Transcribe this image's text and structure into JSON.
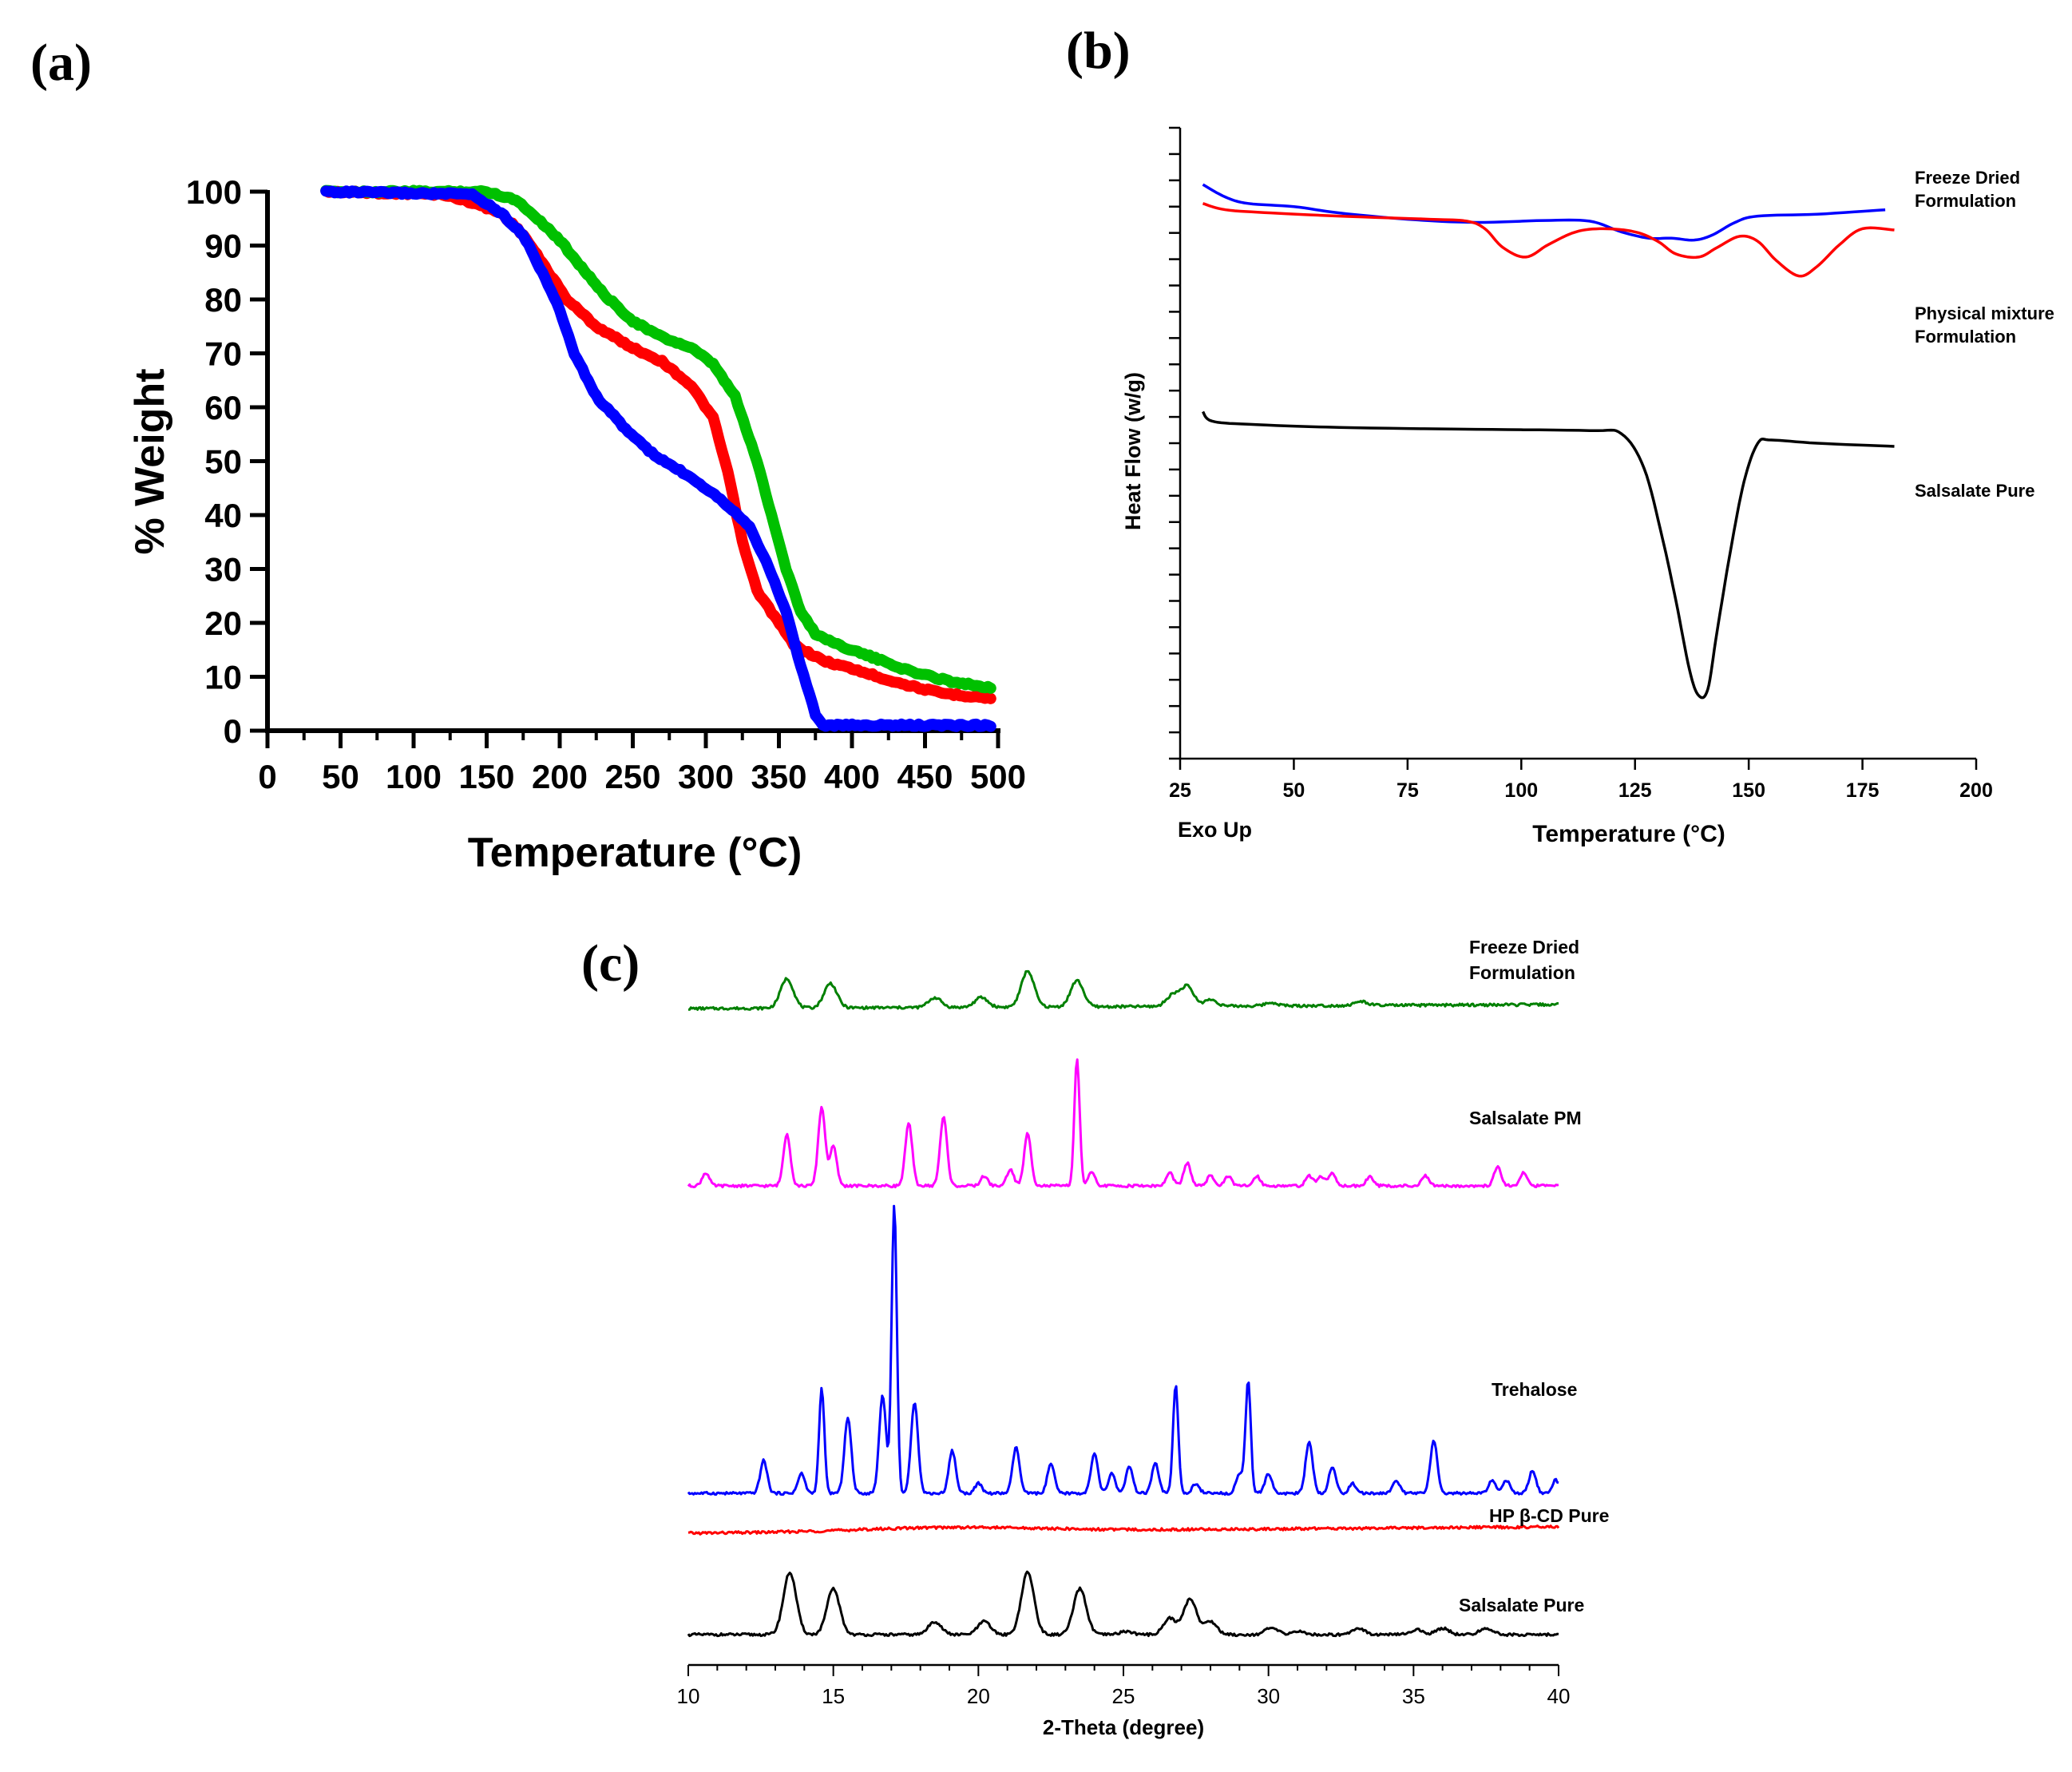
{
  "panel_labels": {
    "a": "(a)",
    "b": "(b)",
    "c": "(c)"
  },
  "chart_data": [
    {
      "panel": "(a)",
      "type": "line",
      "xlabel": "Temperature (°C)",
      "ylabel": "% Weight",
      "xlim": [
        0,
        500
      ],
      "ylim": [
        0,
        100
      ],
      "xticks": [
        "0",
        "50",
        "100",
        "150",
        "200",
        "250",
        "300",
        "350",
        "400",
        "450",
        "500"
      ],
      "yticks": [
        "0",
        "10",
        "20",
        "30",
        "40",
        "50",
        "60",
        "70",
        "80",
        "90",
        "100"
      ],
      "grid": false,
      "series": [
        {
          "color": "#ff0000",
          "points": [
            [
              40,
              100
            ],
            [
              120,
              99.5
            ],
            [
              140,
              98
            ],
            [
              160,
              96
            ],
            [
              175,
              92
            ],
            [
              190,
              86
            ],
            [
              205,
              80
            ],
            [
              225,
              75
            ],
            [
              250,
              71
            ],
            [
              270,
              68.5
            ],
            [
              290,
              64
            ],
            [
              305,
              58
            ],
            [
              315,
              48
            ],
            [
              325,
              35
            ],
            [
              335,
              26
            ],
            [
              345,
              22
            ],
            [
              360,
              16
            ],
            [
              380,
              13
            ],
            [
              400,
              11.5
            ],
            [
              430,
              9
            ],
            [
              460,
              7
            ],
            [
              495,
              6
            ]
          ]
        },
        {
          "color": "#00c000",
          "points": [
            [
              40,
              100
            ],
            [
              150,
              100
            ],
            [
              170,
              98.5
            ],
            [
              185,
              95
            ],
            [
              200,
              91
            ],
            [
              215,
              86
            ],
            [
              230,
              81
            ],
            [
              250,
              76
            ],
            [
              270,
              73
            ],
            [
              290,
              71
            ],
            [
              305,
              68
            ],
            [
              320,
              62
            ],
            [
              335,
              50
            ],
            [
              345,
              40
            ],
            [
              355,
              30
            ],
            [
              365,
              22
            ],
            [
              375,
              18
            ],
            [
              390,
              16
            ],
            [
              410,
              14
            ],
            [
              440,
              11
            ],
            [
              470,
              9
            ],
            [
              495,
              8
            ]
          ]
        },
        {
          "color": "#0000ff",
          "points": [
            [
              40,
              100
            ],
            [
              140,
              99.5
            ],
            [
              160,
              96
            ],
            [
              175,
              92
            ],
            [
              190,
              84
            ],
            [
              200,
              78
            ],
            [
              210,
              70
            ],
            [
              225,
              62
            ],
            [
              245,
              56
            ],
            [
              265,
              51
            ],
            [
              290,
              47
            ],
            [
              310,
              43
            ],
            [
              330,
              38
            ],
            [
              345,
              29
            ],
            [
              355,
              22
            ],
            [
              365,
              12
            ],
            [
              375,
              3
            ],
            [
              380,
              1
            ],
            [
              420,
              1
            ],
            [
              495,
              1
            ]
          ]
        }
      ]
    },
    {
      "panel": "(b)",
      "type": "line",
      "xlabel": "Temperature (°C)",
      "ylabel": "Heat Flow (w/g)",
      "corner_note": "Exo Up",
      "xlim": [
        25,
        200
      ],
      "xticks": [
        "25",
        "50",
        "75",
        "100",
        "125",
        "150",
        "175",
        "200"
      ],
      "grid": false,
      "series": [
        {
          "name": "Freeze Dried Formulation",
          "label_lines": [
            "Freeze Dried",
            "Formulation"
          ],
          "color": "#0000ff",
          "points": [
            [
              30,
              91
            ],
            [
              35,
              89
            ],
            [
              40,
              88
            ],
            [
              50,
              87.5
            ],
            [
              60,
              86.5
            ],
            [
              75,
              85.5
            ],
            [
              90,
              85
            ],
            [
              105,
              85.3
            ],
            [
              115,
              85.2
            ],
            [
              122,
              83.5
            ],
            [
              128,
              82.5
            ],
            [
              133,
              82.5
            ],
            [
              138,
              82.2
            ],
            [
              142,
              83
            ],
            [
              147,
              85
            ],
            [
              152,
              86
            ],
            [
              165,
              86.3
            ],
            [
              180,
              87
            ]
          ]
        },
        {
          "name": "Physical mixture Formulation",
          "label_lines": [
            "Physical mixture",
            "Formulation"
          ],
          "color": "#ff0000",
          "points": [
            [
              30,
              88
            ],
            [
              35,
              87
            ],
            [
              45,
              86.5
            ],
            [
              60,
              86
            ],
            [
              80,
              85.5
            ],
            [
              88,
              85.2
            ],
            [
              92,
              84
            ],
            [
              96,
              81
            ],
            [
              101,
              79.5
            ],
            [
              106,
              81.5
            ],
            [
              112,
              83.5
            ],
            [
              118,
              84
            ],
            [
              125,
              83.5
            ],
            [
              130,
              82
            ],
            [
              134,
              80
            ],
            [
              139,
              79.5
            ],
            [
              143,
              81
            ],
            [
              148,
              82.8
            ],
            [
              152,
              82
            ],
            [
              156,
              79
            ],
            [
              161,
              76.5
            ],
            [
              165,
              78
            ],
            [
              170,
              81.5
            ],
            [
              175,
              84
            ],
            [
              182,
              83.8
            ]
          ]
        },
        {
          "name": "Salsalate Pure",
          "label_lines": [
            "Salsalate Pure"
          ],
          "color": "#000000",
          "points": [
            [
              30,
              55
            ],
            [
              32,
              53.5
            ],
            [
              40,
              53
            ],
            [
              60,
              52.5
            ],
            [
              90,
              52.2
            ],
            [
              115,
              52
            ],
            [
              122,
              51.5
            ],
            [
              127,
              46
            ],
            [
              131,
              35
            ],
            [
              134,
              25
            ],
            [
              137,
              14
            ],
            [
              139,
              10
            ],
            [
              141,
              11
            ],
            [
              143,
              20
            ],
            [
              146,
              33
            ],
            [
              149,
              44
            ],
            [
              152,
              50
            ],
            [
              155,
              50.5
            ],
            [
              165,
              50
            ],
            [
              182,
              49.5
            ]
          ]
        }
      ]
    },
    {
      "panel": "(c)",
      "type": "line",
      "xlabel": "2-Theta (degree)",
      "xlim": [
        10,
        40
      ],
      "xticks": [
        "10",
        "15",
        "20",
        "25",
        "30",
        "35",
        "40"
      ],
      "grid": false,
      "series": [
        {
          "name": "Freeze Dried Formulation",
          "label_lines": [
            "Freeze Dried",
            "Formulation"
          ],
          "color": "#008000",
          "baseline": 1.0,
          "peaks": [
            [
              13.4,
              0.9
            ],
            [
              14.9,
              0.75
            ],
            [
              18.5,
              0.3
            ],
            [
              20.1,
              0.3
            ],
            [
              21.7,
              1.1
            ],
            [
              23.4,
              0.8
            ],
            [
              26.7,
              0.35
            ],
            [
              27.2,
              0.6
            ],
            [
              28,
              0.2
            ],
            [
              30.1,
              0.1
            ],
            [
              33.2,
              0.12
            ]
          ]
        },
        {
          "name": "Salsalate PM",
          "label_lines": [
            "Salsalate PM"
          ],
          "color": "#ff00ff",
          "baseline": 1.0,
          "peaks": [
            [
              10.6,
              0.4
            ],
            [
              13.4,
              1.6
            ],
            [
              14.6,
              2.4
            ],
            [
              15.0,
              1.2
            ],
            [
              17.6,
              1.9
            ],
            [
              18.8,
              2.1
            ],
            [
              20.2,
              0.3
            ],
            [
              21.1,
              0.5
            ],
            [
              21.7,
              1.6
            ],
            [
              23.4,
              3.9
            ],
            [
              23.9,
              0.4
            ],
            [
              26.6,
              0.4
            ],
            [
              27.2,
              0.7
            ],
            [
              28.0,
              0.3
            ],
            [
              28.6,
              0.3
            ],
            [
              29.6,
              0.3
            ],
            [
              31.4,
              0.3
            ],
            [
              31.8,
              0.3
            ],
            [
              32.2,
              0.4
            ],
            [
              33.5,
              0.3
            ],
            [
              35.4,
              0.3
            ],
            [
              37.9,
              0.6
            ],
            [
              38.8,
              0.4
            ]
          ]
        },
        {
          "name": "Trehalose",
          "label_lines": [
            "Trehalose"
          ],
          "color": "#0000ff",
          "baseline": 1.0,
          "peaks": [
            [
              12.6,
              1.0
            ],
            [
              13.9,
              0.6
            ],
            [
              14.6,
              3.2
            ],
            [
              15.5,
              2.3
            ],
            [
              16.7,
              3.0
            ],
            [
              17.1,
              8.8
            ],
            [
              17.8,
              2.8
            ],
            [
              19.1,
              1.3
            ],
            [
              20.0,
              0.3
            ],
            [
              21.3,
              1.4
            ],
            [
              22.5,
              0.9
            ],
            [
              24.0,
              1.2
            ],
            [
              24.6,
              0.6
            ],
            [
              25.2,
              0.8
            ],
            [
              26.1,
              0.9
            ],
            [
              26.8,
              3.3
            ],
            [
              27.5,
              0.3
            ],
            [
              29.0,
              0.6
            ],
            [
              29.3,
              3.4
            ],
            [
              30.0,
              0.6
            ],
            [
              31.4,
              1.6
            ],
            [
              32.2,
              0.8
            ],
            [
              32.9,
              0.3
            ],
            [
              34.4,
              0.4
            ],
            [
              35.7,
              1.6
            ],
            [
              37.7,
              0.4
            ],
            [
              38.2,
              0.4
            ],
            [
              39.1,
              0.7
            ],
            [
              39.9,
              0.4
            ]
          ]
        },
        {
          "name": "HP β-CD Pure",
          "label_lines": [
            "HP β-CD Pure"
          ],
          "color": "#ff0000",
          "baseline": 1.0,
          "peaks": []
        },
        {
          "name": "Salsalate Pure",
          "label_lines": [
            "Salsalate Pure"
          ],
          "color": "#000000",
          "baseline": 1.0,
          "peaks": [
            [
              13.5,
              1.9
            ],
            [
              15.0,
              1.4
            ],
            [
              18.5,
              0.4
            ],
            [
              20.2,
              0.4
            ],
            [
              21.7,
              1.9
            ],
            [
              23.5,
              1.4
            ],
            [
              25.1,
              0.1
            ],
            [
              26.6,
              0.5
            ],
            [
              27.3,
              1.1
            ],
            [
              28.0,
              0.4
            ],
            [
              30.1,
              0.2
            ],
            [
              31.0,
              0.1
            ],
            [
              33.1,
              0.2
            ],
            [
              35.1,
              0.15
            ],
            [
              36.0,
              0.2
            ],
            [
              37.5,
              0.2
            ]
          ]
        }
      ]
    }
  ]
}
